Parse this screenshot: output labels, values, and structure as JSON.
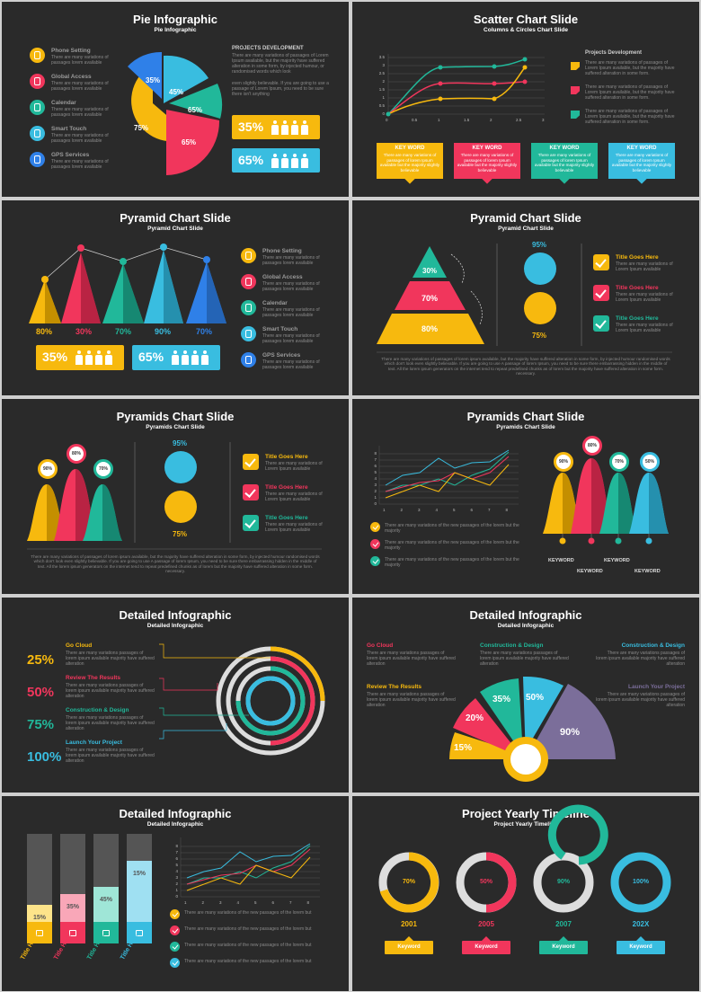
{
  "colors": {
    "yellow": "#f7b90e",
    "red": "#f1365c",
    "teal": "#21b89a",
    "blue": "#39bde0",
    "purple": "#7b6e9a",
    "dark": "#2a2a2a"
  },
  "lorem_short": "There are many variations of passages lorem available",
  "lorem_med": "There are many variations of passages of Lorem Ipsum available",
  "lorem_long": "There are many variations of passages of lorem ipsum available, but the majority have suffered alteration in some form, by injected humour randomised words which don't look even slightly believable. If you are going to use A passage of lorem Ipsum, you need to be sure there embarrassing hidden in the middle of text. All the lorem ipsum generators on the internet tend to repeat predefined chunks as of lorem but the majority have suffered alteration in some form. necessary.",
  "list_icons": [
    {
      "label": "Phone Setting",
      "icon": "phone-icon"
    },
    {
      "label": "Global Access",
      "icon": "globe-icon"
    },
    {
      "label": "Calendar",
      "icon": "calendar-icon"
    },
    {
      "label": "Smart Touch",
      "icon": "touch-icon"
    },
    {
      "label": "GPS Services",
      "icon": "pin-icon"
    }
  ],
  "s1": {
    "title": "Pie Infographic",
    "subtitle": "Pie Infographic",
    "proj_title": "PROJECTS DEVELOPMENT",
    "proj_text": "There are many variations of passages of Lorem Ipsum available, but the majority have suffered alteration in some form, by injected humour, or randomised words which look",
    "proj_text2": "even slightly believable. If you are going to use a passage of Lorem Ipsum, you need to be sure there isn't anything",
    "slices": [
      "35%",
      "45%",
      "65%",
      "65%",
      "75%"
    ],
    "stat1": "35%",
    "stat2": "65%"
  },
  "s2": {
    "title": "Scatter Chart Slide",
    "subtitle": "Columns & Circles Chart Slide",
    "legend_title": "Projects Development",
    "legend_text": "There are many variations of passages of Lorem Ipsum available, but the majority have suffered alteration in some form.",
    "y_ticks": [
      "0",
      "0.5",
      "1",
      "1.5",
      "2",
      "2.5",
      "3",
      "3.5"
    ],
    "x_ticks": [
      "0",
      "0.5",
      "1",
      "1.5",
      "2",
      "2.5",
      "3"
    ],
    "keyword": "KEY WORD",
    "key_text": "There are many variations of passages of lorem Ipsum available but the majority slightly believable"
  },
  "s3": {
    "title": "Pyramid Chart Slide",
    "subtitle": "Pyramid Chart Slide",
    "values": [
      "80%",
      "30%",
      "70%",
      "90%",
      "70%"
    ],
    "stat1": "35%",
    "stat2": "65%"
  },
  "s4": {
    "title": "Pyramid Chart Slide",
    "subtitle": "Pyramid Chart Slide",
    "tiers": [
      "30%",
      "70%",
      "80%"
    ],
    "top_pct": "95%",
    "bot_pct": "75%",
    "item_title": "Title Goes Here",
    "item_text": "There are many variations of Lorem Ipsum available"
  },
  "s5": {
    "title": "Pyramids Chart Slide",
    "subtitle": "Pyramids Chart Slide",
    "pins": [
      "90%",
      "80%",
      "70%"
    ],
    "top_pct": "95%",
    "bot_pct": "75%",
    "item_title": "Title Goes Here",
    "item_text": "There are many variations of Lorem Ipsum available"
  },
  "s6": {
    "title": "Pyramids Chart Slide",
    "subtitle": "Pyramids Chart Slide",
    "pins": [
      "90%",
      "80%",
      "70%",
      "50%"
    ],
    "y_ticks": [
      "0",
      "1",
      "2",
      "3",
      "4",
      "5",
      "6",
      "7",
      "8"
    ],
    "x_ticks": [
      "1",
      "2",
      "3",
      "4",
      "5",
      "6",
      "7",
      "8"
    ],
    "check_text": "There are many variations of the new passages of the lorem but the majority",
    "keyword": "KEYWORD"
  },
  "s7": {
    "title": "Detailed Infographic",
    "subtitle": "Detailed Infographic",
    "items": [
      {
        "pct": "25%",
        "label": "Go Cloud"
      },
      {
        "pct": "50%",
        "label": "Review The Results"
      },
      {
        "pct": "75%",
        "label": "Construction & Design"
      },
      {
        "pct": "100%",
        "label": "Launch Your Project"
      }
    ],
    "item_text": "There are many variations passages of lorem ipsum available majority have suffered alteration"
  },
  "s8": {
    "title": "Detailed Infographic",
    "subtitle": "Detailed Infographic",
    "labels": [
      "Go Cloud",
      "Construction & Design",
      "Construction & Design",
      "Review The Results",
      "Launch Your Project"
    ],
    "fan": [
      "15%",
      "20%",
      "35%",
      "50%",
      "90%"
    ],
    "item_text": "There are many variations passages of lorem ipsum available majority have suffered alteration"
  },
  "s9": {
    "title": "Detailed Infographic",
    "subtitle": "Detailed Infographic",
    "bars": [
      "15%",
      "35%",
      "45%",
      "15%"
    ],
    "bar_label": "Title Here",
    "y_ticks": [
      "0",
      "1",
      "2",
      "3",
      "4",
      "5",
      "6",
      "7",
      "8"
    ],
    "x_ticks": [
      "1",
      "2",
      "3",
      "4",
      "5",
      "6",
      "7",
      "8"
    ],
    "check_text": "There are many variations of the new passages of the lorem but"
  },
  "s10": {
    "title": "Project Yearly Timeline",
    "subtitle": "Project Yearly Timeline",
    "items": [
      {
        "pct": "70%",
        "year": "2001"
      },
      {
        "pct": "50%",
        "year": "2005"
      },
      {
        "pct": "90%",
        "year": "2007"
      },
      {
        "pct": "100%",
        "year": "202X"
      }
    ],
    "keyword": "Keyword"
  }
}
